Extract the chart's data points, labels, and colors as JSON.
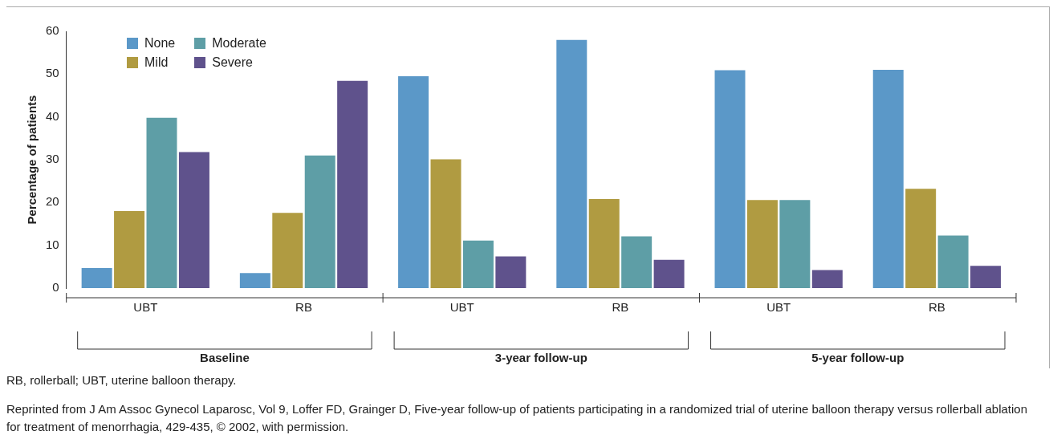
{
  "chart_data": {
    "type": "bar",
    "ylabel": "Percentage of patients",
    "categories": [
      "UBT",
      "RB",
      "UBT",
      "RB",
      "UBT",
      "RB"
    ],
    "series": [
      {
        "name": "None",
        "color": "#5b98c8",
        "values": [
          4.7,
          3.5,
          49.5,
          58.0,
          50.9,
          51.0
        ]
      },
      {
        "name": "Mild",
        "color": "#b09b41",
        "values": [
          18.0,
          17.6,
          30.1,
          20.8,
          20.6,
          23.2
        ]
      },
      {
        "name": "Moderate",
        "color": "#5e9ea6",
        "values": [
          39.8,
          31.0,
          11.1,
          12.1,
          20.6,
          12.3
        ]
      },
      {
        "name": "Severe",
        "color": "#5f528c",
        "values": [
          31.8,
          48.4,
          7.4,
          6.6,
          4.2,
          5.2
        ]
      }
    ],
    "ylim": [
      0,
      60
    ],
    "yticks": [
      0,
      10,
      20,
      30,
      40,
      50,
      60
    ],
    "grid": false,
    "legend": "top left",
    "annotations": [
      "Baseline",
      "3-year follow-up",
      "5-year follow-up",
      "RB, rollerball; UBT, uterine balloon therapy.",
      "Reprinted from J Am Assoc Gynecol Laparosc, Vol 9, Loffer FD, Grainger D, Five-year follow-up of patients participating in a randomized trial of uterine balloon therapy versus rollerball ablation for treatment of menorrhagia, 429-435, © 2002, with permission."
    ]
  }
}
